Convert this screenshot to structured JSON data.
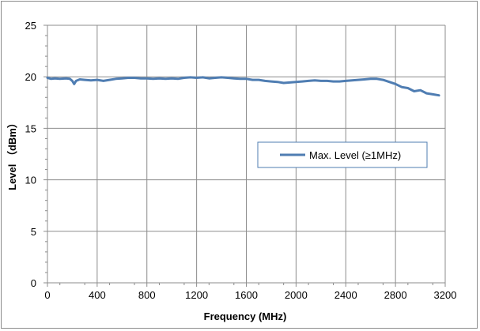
{
  "chart_data": {
    "type": "line",
    "title": "",
    "xlabel": "Frequency (MHz)",
    "ylabel": "Level （dBm）",
    "xlim": [
      0,
      3200
    ],
    "ylim": [
      0,
      25
    ],
    "x_ticks": [
      "0",
      "400",
      "800",
      "1200",
      "1600",
      "2000",
      "2400",
      "2800",
      "3200"
    ],
    "y_ticks": [
      "0",
      "5",
      "10",
      "15",
      "20",
      "25"
    ],
    "x_tick_values": [
      0,
      400,
      800,
      1200,
      1600,
      2000,
      2400,
      2800,
      3200
    ],
    "y_tick_values": [
      0,
      5,
      10,
      15,
      20,
      25
    ],
    "grid": true,
    "legend_position": "right-center",
    "series": [
      {
        "name": "Max. Level (≥1MHz)",
        "color": "#4f7db2",
        "x": [
          0,
          30,
          60,
          100,
          150,
          180,
          200,
          215,
          230,
          260,
          300,
          350,
          400,
          450,
          500,
          550,
          600,
          650,
          700,
          750,
          800,
          850,
          900,
          950,
          1000,
          1050,
          1100,
          1150,
          1200,
          1250,
          1300,
          1350,
          1400,
          1450,
          1500,
          1550,
          1600,
          1650,
          1700,
          1750,
          1800,
          1850,
          1900,
          1950,
          2000,
          2050,
          2100,
          2150,
          2200,
          2250,
          2300,
          2350,
          2400,
          2450,
          2500,
          2550,
          2600,
          2650,
          2700,
          2750,
          2800,
          2850,
          2900,
          2950,
          3000,
          3050,
          3100,
          3150
        ],
        "y": [
          19.9,
          19.8,
          19.85,
          19.8,
          19.85,
          19.8,
          19.6,
          19.3,
          19.6,
          19.75,
          19.7,
          19.65,
          19.7,
          19.6,
          19.7,
          19.8,
          19.85,
          19.9,
          19.9,
          19.85,
          19.85,
          19.8,
          19.85,
          19.8,
          19.85,
          19.8,
          19.9,
          19.95,
          19.9,
          19.95,
          19.85,
          19.9,
          19.95,
          19.9,
          19.85,
          19.8,
          19.8,
          19.7,
          19.7,
          19.6,
          19.55,
          19.5,
          19.4,
          19.45,
          19.5,
          19.55,
          19.6,
          19.65,
          19.6,
          19.6,
          19.55,
          19.55,
          19.6,
          19.65,
          19.7,
          19.75,
          19.8,
          19.8,
          19.7,
          19.5,
          19.3,
          19.0,
          18.9,
          18.6,
          18.7,
          18.4,
          18.3,
          18.2
        ]
      }
    ]
  }
}
